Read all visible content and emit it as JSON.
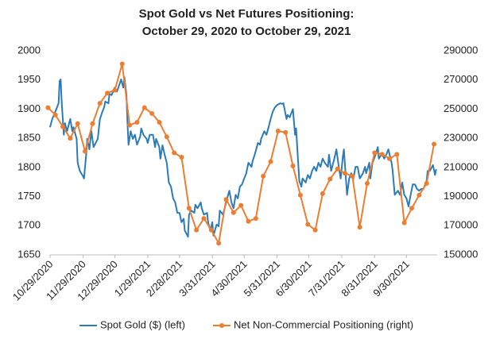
{
  "chart_data": {
    "type": "line",
    "title": [
      "Spot Gold vs Net Futures Positioning:",
      "October 29, 2020 to October 29, 2021"
    ],
    "xlim": [
      "2020-10-29",
      "2021-10-29"
    ],
    "xticks": [
      {
        "value": "2020-10-29",
        "label": "10/29/2020"
      },
      {
        "value": "2020-11-29",
        "label": "11/29/2020"
      },
      {
        "value": "2020-12-29",
        "label": "12/29/2020"
      },
      {
        "value": "2021-01-29",
        "label": "1/29/2021"
      },
      {
        "value": "2021-02-28",
        "label": "2/28/2021"
      },
      {
        "value": "2021-03-31",
        "label": "3/31/2021"
      },
      {
        "value": "2021-04-30",
        "label": "4/30/2021"
      },
      {
        "value": "2021-05-31",
        "label": "5/31/2021"
      },
      {
        "value": "2021-06-30",
        "label": "6/30/2021"
      },
      {
        "value": "2021-07-31",
        "label": "7/31/2021"
      },
      {
        "value": "2021-08-31",
        "label": "8/31/2021"
      },
      {
        "value": "2021-09-30",
        "label": "9/30/2021"
      }
    ],
    "ylim": [
      1650,
      2000
    ],
    "yticks": [
      1650,
      1700,
      1750,
      1800,
      1850,
      1900,
      1950,
      2000
    ],
    "y2lim": [
      150000,
      290000
    ],
    "y2ticks": [
      150000,
      170000,
      190000,
      210000,
      230000,
      250000,
      270000,
      290000
    ],
    "grid": false,
    "legend": "bottom",
    "series": [
      {
        "name": "Spot Gold ($) (left)",
        "color": "#2b7bba",
        "axis": "y",
        "markers": false,
        "x": [
          "2020-10-29",
          "2020-10-31",
          "2020-11-03",
          "2020-11-06",
          "2020-11-07",
          "2020-11-08",
          "2020-11-09",
          "2020-11-11",
          "2020-11-12",
          "2020-11-14",
          "2020-11-17",
          "2020-11-19",
          "2020-11-20",
          "2020-11-23",
          "2020-11-24",
          "2020-11-26",
          "2020-11-29",
          "2020-11-30",
          "2020-12-02",
          "2020-12-03",
          "2020-12-05",
          "2020-12-07",
          "2020-12-09",
          "2020-12-11",
          "2020-12-13",
          "2020-12-15",
          "2020-12-17",
          "2020-12-19",
          "2020-12-20",
          "2020-12-23",
          "2020-12-24",
          "2020-12-26",
          "2020-12-29",
          "2020-12-31",
          "2021-01-02",
          "2021-01-04",
          "2021-01-06",
          "2021-01-07",
          "2021-01-09",
          "2021-01-10",
          "2021-01-11",
          "2021-01-13",
          "2021-01-15",
          "2021-01-17",
          "2021-01-19",
          "2021-01-22",
          "2021-01-23",
          "2021-01-25",
          "2021-01-28",
          "2021-01-29",
          "2021-01-31",
          "2021-02-03",
          "2021-02-05",
          "2021-02-06",
          "2021-02-09",
          "2021-02-10",
          "2021-02-12",
          "2021-02-14",
          "2021-02-16",
          "2021-02-18",
          "2021-02-20",
          "2021-02-22",
          "2021-02-24",
          "2021-02-26",
          "2021-02-28",
          "2021-03-02",
          "2021-03-04",
          "2021-03-05",
          "2021-03-08",
          "2021-03-09",
          "2021-03-11",
          "2021-03-14",
          "2021-03-15",
          "2021-03-17",
          "2021-03-20",
          "2021-03-21",
          "2021-03-23",
          "2021-03-26",
          "2021-03-27",
          "2021-03-29",
          "2021-03-31",
          "2021-04-01",
          "2021-04-04",
          "2021-04-06",
          "2021-04-07",
          "2021-04-10",
          "2021-04-12",
          "2021-04-14",
          "2021-04-16",
          "2021-04-18",
          "2021-04-20",
          "2021-04-22",
          "2021-04-24",
          "2021-04-26",
          "2021-04-28",
          "2021-04-30",
          "2021-05-02",
          "2021-05-04",
          "2021-05-07",
          "2021-05-08",
          "2021-05-10",
          "2021-05-13",
          "2021-05-15",
          "2021-05-16",
          "2021-05-19",
          "2021-05-21",
          "2021-05-23",
          "2021-05-25",
          "2021-05-27",
          "2021-05-29",
          "2021-05-31",
          "2021-06-03",
          "2021-06-05",
          "2021-06-06",
          "2021-06-09",
          "2021-06-10",
          "2021-06-12",
          "2021-06-15",
          "2021-06-17",
          "2021-06-18",
          "2021-06-21",
          "2021-06-23",
          "2021-06-24",
          "2021-06-27",
          "2021-06-29",
          "2021-07-01",
          "2021-07-03",
          "2021-07-05",
          "2021-07-07",
          "2021-07-09",
          "2021-07-11",
          "2021-07-13",
          "2021-07-15",
          "2021-07-18",
          "2021-07-19",
          "2021-07-21",
          "2021-07-24",
          "2021-07-26",
          "2021-07-28",
          "2021-07-30",
          "2021-08-01",
          "2021-08-02",
          "2021-08-05",
          "2021-08-07",
          "2021-08-09",
          "2021-08-11",
          "2021-08-13",
          "2021-08-15",
          "2021-08-17",
          "2021-08-20",
          "2021-08-22",
          "2021-08-23",
          "2021-08-26",
          "2021-08-27",
          "2021-08-29",
          "2021-09-01",
          "2021-09-03",
          "2021-09-04",
          "2021-09-07",
          "2021-09-09",
          "2021-09-11",
          "2021-09-13",
          "2021-09-16",
          "2021-09-17",
          "2021-09-19",
          "2021-09-22",
          "2021-09-24",
          "2021-09-26",
          "2021-09-28",
          "2021-09-30",
          "2021-10-02",
          "2021-10-04",
          "2021-10-06",
          "2021-10-08",
          "2021-10-10",
          "2021-10-12",
          "2021-10-14",
          "2021-10-16",
          "2021-10-19",
          "2021-10-20",
          "2021-10-22",
          "2021-10-25",
          "2021-10-27",
          "2021-10-28"
        ],
        "values": [
          1869,
          1883,
          1896,
          1910,
          1948,
          1951,
          1910,
          1856,
          1876,
          1862,
          1883,
          1862,
          1869,
          1849,
          1808,
          1794,
          1785,
          1781,
          1822,
          1849,
          1831,
          1862,
          1835,
          1842,
          1849,
          1883,
          1894,
          1903,
          1913,
          1910,
          1926,
          1924,
          1937,
          1930,
          1940,
          1951,
          1937,
          1955,
          1924,
          1876,
          1839,
          1862,
          1849,
          1856,
          1839,
          1853,
          1867,
          1856,
          1849,
          1842,
          1856,
          1856,
          1835,
          1849,
          1835,
          1815,
          1838,
          1822,
          1808,
          1774,
          1767,
          1747,
          1740,
          1722,
          1722,
          1706,
          1712,
          1692,
          1681,
          1719,
          1726,
          1722,
          1736,
          1730,
          1740,
          1730,
          1719,
          1722,
          1706,
          1692,
          1706,
          1683,
          1702,
          1699,
          1726,
          1719,
          1733,
          1747,
          1760,
          1740,
          1730,
          1753,
          1747,
          1767,
          1771,
          1781,
          1790,
          1808,
          1801,
          1811,
          1822,
          1842,
          1839,
          1849,
          1862,
          1856,
          1869,
          1883,
          1896,
          1903,
          1907,
          1910,
          1909,
          1910,
          1883,
          1890,
          1886,
          1900,
          1856,
          1867,
          1777,
          1767,
          1781,
          1774,
          1787,
          1781,
          1794,
          1801,
          1794,
          1808,
          1801,
          1815,
          1808,
          1801,
          1822,
          1794,
          1815,
          1831,
          1804,
          1781,
          1818,
          1831,
          1753,
          1781,
          1790,
          1781,
          1801,
          1801,
          1781,
          1790,
          1801,
          1790,
          1808,
          1781,
          1808,
          1822,
          1835,
          1815,
          1824,
          1815,
          1822,
          1831,
          1808,
          1794,
          1753,
          1760,
          1753,
          1774,
          1753,
          1747,
          1733,
          1753,
          1771,
          1771,
          1763,
          1760,
          1763,
          1763,
          1777,
          1794,
          1794,
          1804,
          1787,
          1797
        ]
      },
      {
        "name": "Net Non-Commercial Positioning (right)",
        "color": "#ed7d31",
        "axis": "y2",
        "markers": true,
        "x": [
          "2020-10-27",
          "2020-11-03",
          "2020-11-10",
          "2020-11-17",
          "2020-11-24",
          "2020-12-01",
          "2020-12-08",
          "2020-12-15",
          "2020-12-22",
          "2020-12-29",
          "2021-01-05",
          "2021-01-12",
          "2021-01-19",
          "2021-01-26",
          "2021-02-02",
          "2021-02-09",
          "2021-02-16",
          "2021-02-23",
          "2021-03-02",
          "2021-03-09",
          "2021-03-16",
          "2021-03-23",
          "2021-03-30",
          "2021-04-06",
          "2021-04-13",
          "2021-04-20",
          "2021-04-27",
          "2021-05-04",
          "2021-05-11",
          "2021-05-18",
          "2021-05-25",
          "2021-06-01",
          "2021-06-08",
          "2021-06-15",
          "2021-06-22",
          "2021-06-29",
          "2021-07-06",
          "2021-07-13",
          "2021-07-20",
          "2021-07-27",
          "2021-08-03",
          "2021-08-10",
          "2021-08-17",
          "2021-08-24",
          "2021-08-31",
          "2021-09-07",
          "2021-09-14",
          "2021-09-21",
          "2021-09-28",
          "2021-10-05",
          "2021-10-12",
          "2021-10-19",
          "2021-10-26"
        ],
        "values": [
          251000,
          246000,
          238000,
          230000,
          240000,
          221000,
          240000,
          254000,
          261000,
          263000,
          281000,
          239000,
          241000,
          251000,
          247000,
          241000,
          231000,
          220000,
          217000,
          182000,
          167000,
          175000,
          167000,
          158000,
          188000,
          179000,
          184000,
          173000,
          175000,
          204000,
          214000,
          235000,
          234000,
          211000,
          191000,
          171000,
          167000,
          192000,
          202000,
          209000,
          206000,
          204000,
          169000,
          199000,
          220000,
          219000,
          216000,
          219000,
          172000,
          182000,
          191000,
          199000,
          226000
        ]
      }
    ]
  }
}
